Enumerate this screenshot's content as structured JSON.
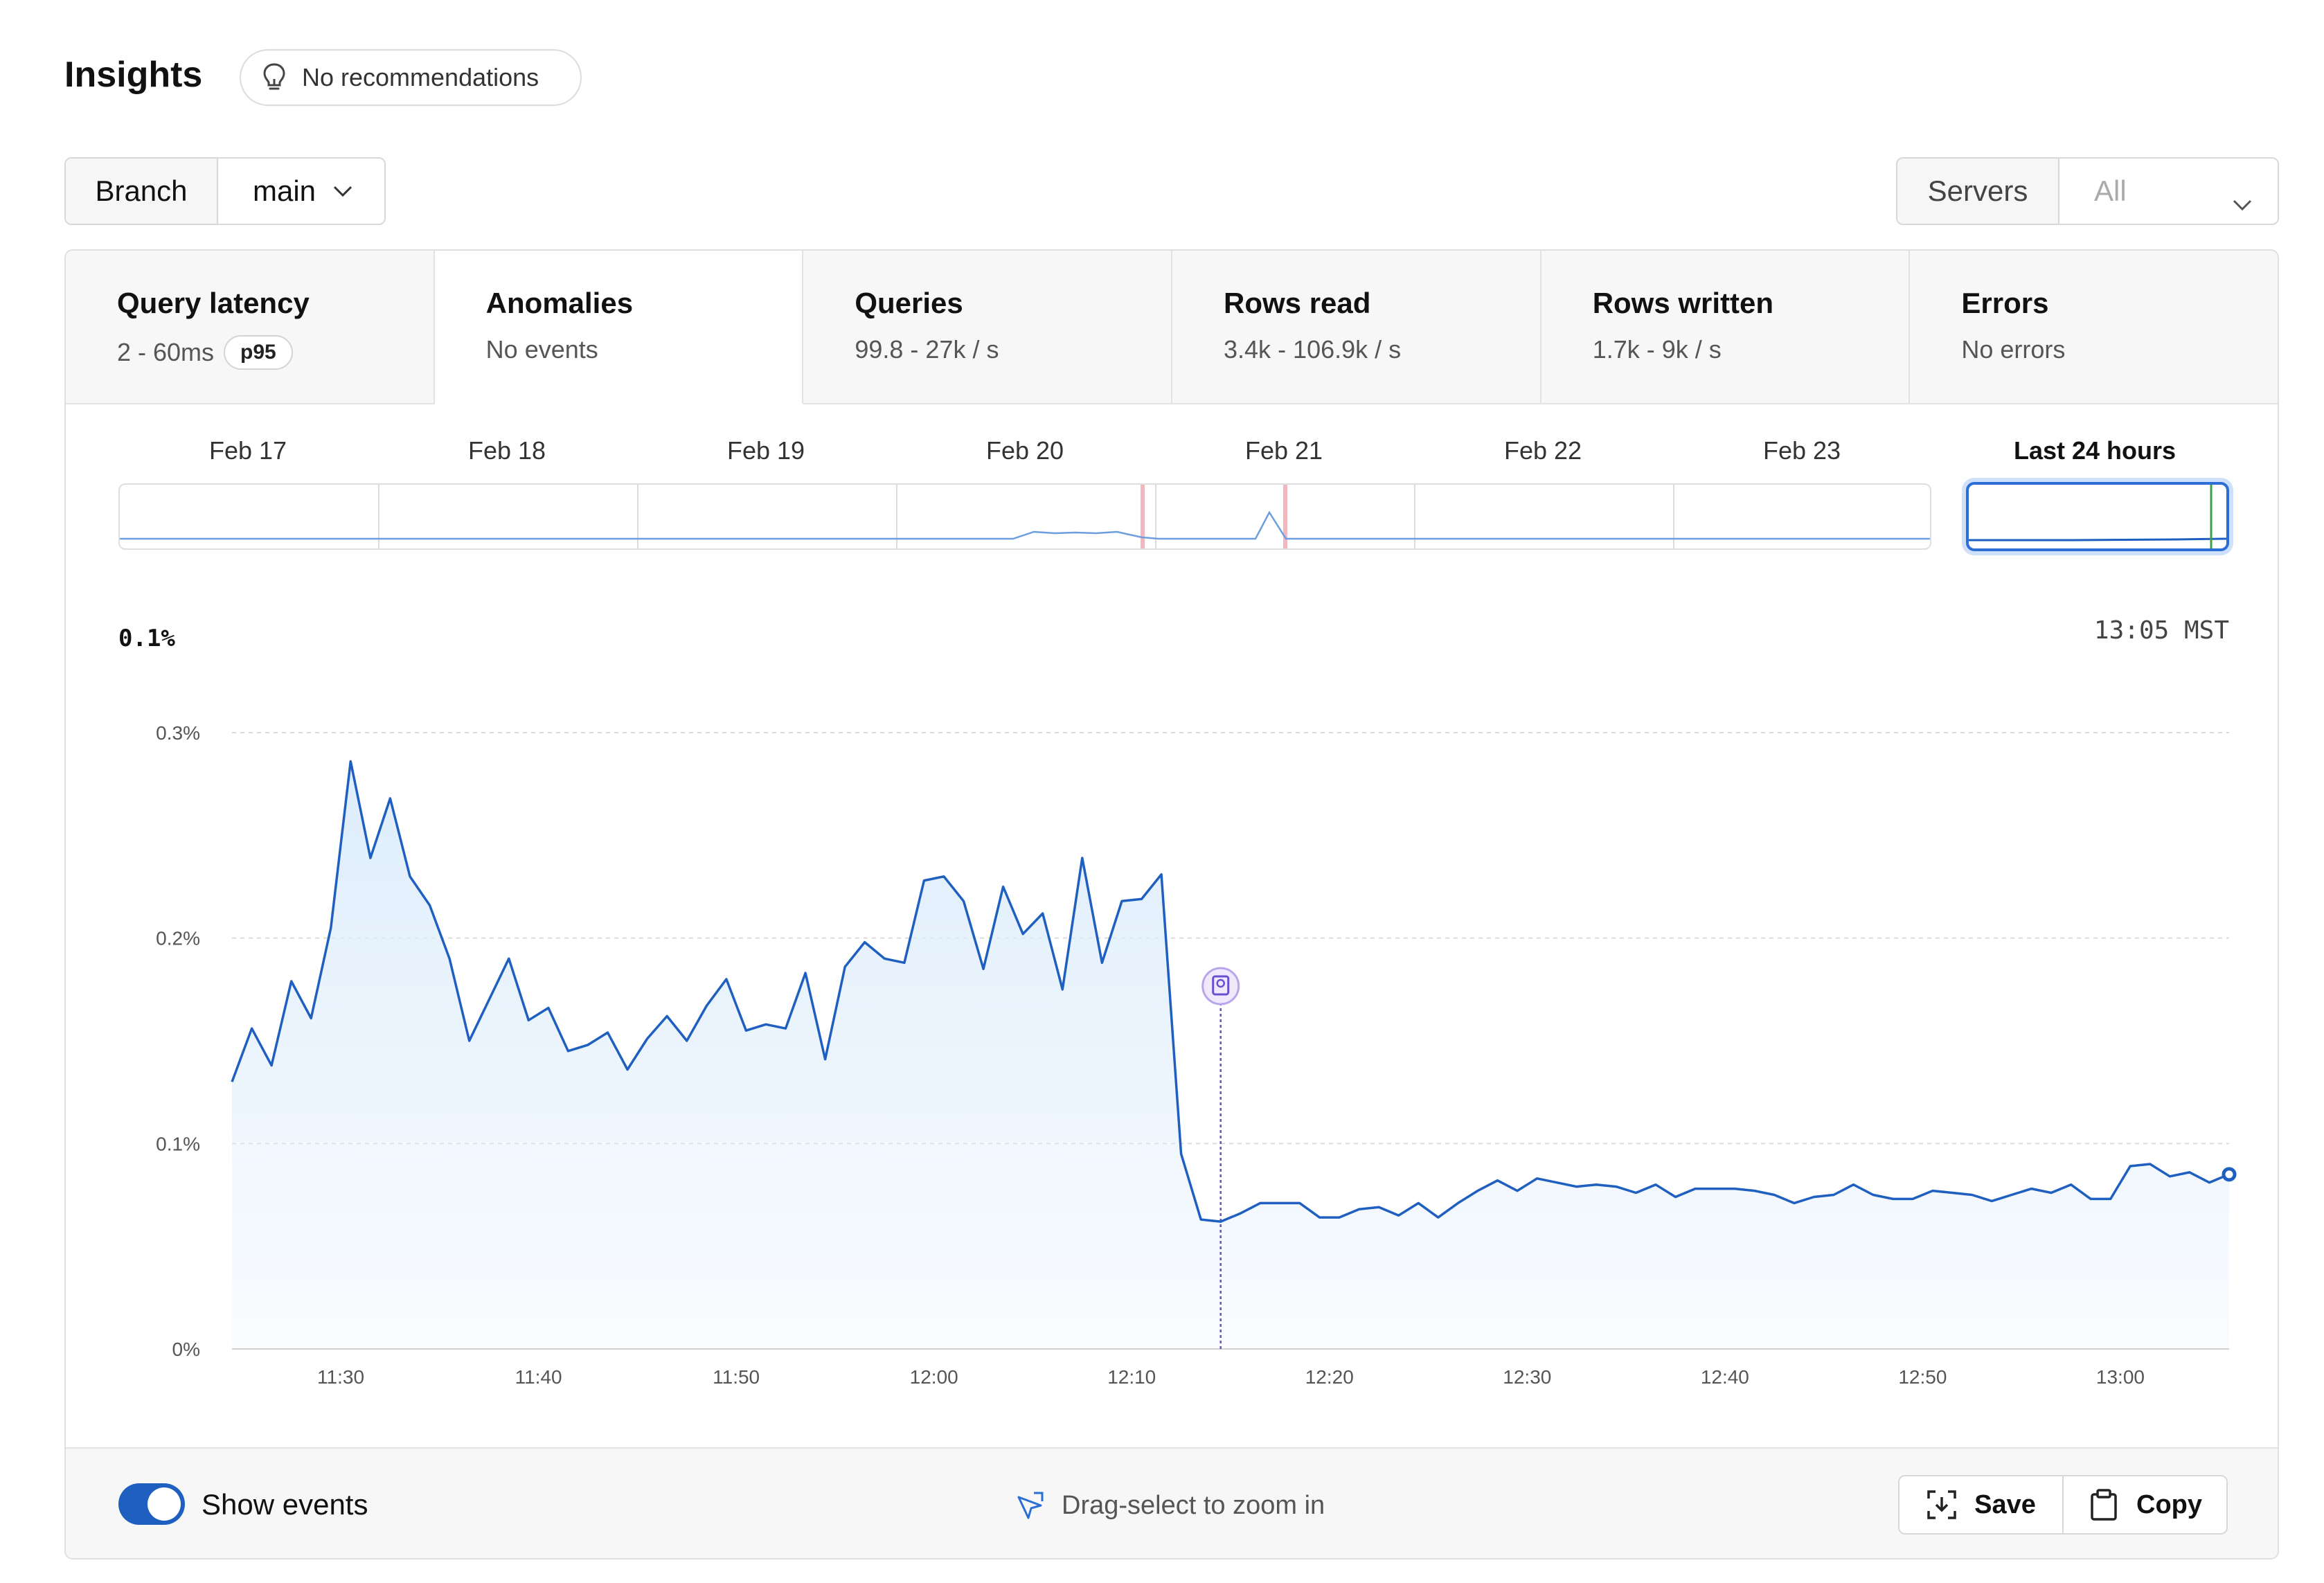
{
  "header": {
    "title": "Insights",
    "recommendations_label": "No recommendations"
  },
  "branch": {
    "label": "Branch",
    "value": "main"
  },
  "servers": {
    "label": "Servers",
    "value": "All"
  },
  "tabs": [
    {
      "title": "Query latency",
      "subtitle": "2 - 60ms",
      "badge": "p95",
      "active": false
    },
    {
      "title": "Anomalies",
      "subtitle": "No events",
      "active": true
    },
    {
      "title": "Queries",
      "subtitle": "99.8 - 27k / s",
      "active": false
    },
    {
      "title": "Rows read",
      "subtitle": "3.4k - 106.9k / s",
      "active": false
    },
    {
      "title": "Rows written",
      "subtitle": "1.7k - 9k / s",
      "active": false
    },
    {
      "title": "Errors",
      "subtitle": "No errors",
      "active": false
    }
  ],
  "minimap": {
    "days": [
      "Feb 17",
      "Feb 18",
      "Feb 19",
      "Feb 20",
      "Feb 21",
      "Feb 22",
      "Feb 23"
    ],
    "last24_label": "Last 24 hours"
  },
  "readout": {
    "value": "0.1%",
    "time": "13:05 MST"
  },
  "chart_data": {
    "type": "area",
    "x_tick_labels": [
      "11:30",
      "11:40",
      "11:50",
      "12:00",
      "12:10",
      "12:20",
      "12:30",
      "12:40",
      "12:50",
      "13:00"
    ],
    "x_ticks_minutes": [
      30,
      40,
      50,
      60,
      70,
      80,
      90,
      100,
      110,
      120
    ],
    "y_tick_labels": [
      "0%",
      "0.1%",
      "0.2%",
      "0.3%"
    ],
    "y_ticks": [
      0,
      0.1,
      0.2,
      0.3
    ],
    "xlim_minutes": [
      24.5,
      125.5
    ],
    "ylim": [
      0,
      0.3
    ],
    "grid": true,
    "event_marker_minutes": 74.5,
    "line_color": "#1f5fc0",
    "fill_color": "#dcecfb",
    "event_color": "#6a4fd0",
    "series": [
      {
        "x": [
          24.5,
          25.5,
          26.5,
          27.5,
          28.5,
          29.5,
          30.5,
          31.5,
          32.5,
          33.5,
          34.5,
          35.5,
          36.5,
          37.5,
          38.5,
          39.5,
          40.5,
          41.5,
          42.5,
          43.5,
          44.5,
          45.5,
          46.5,
          47.5,
          48.5,
          49.5,
          50.5,
          51.5,
          52.5,
          53.5,
          54.5,
          55.5,
          56.5,
          57.5,
          58.5,
          59.5,
          60.5,
          61.5,
          62.5,
          63.5,
          64.5,
          65.5,
          66.5,
          67.5,
          68.5,
          69.5,
          70.5,
          71.5,
          72.5,
          73.5,
          74.5,
          75.5,
          76.5,
          77.5,
          78.5,
          79.5,
          80.5,
          81.5,
          82.5,
          83.5,
          84.5,
          85.5,
          86.5,
          87.5,
          88.5,
          89.5,
          90.5,
          91.5,
          92.5,
          93.5,
          94.5,
          95.5,
          96.5,
          97.5,
          98.5,
          99.5,
          100.5,
          101.5,
          102.5,
          103.5,
          104.5,
          105.5,
          106.5,
          107.5,
          108.5,
          109.5,
          110.5,
          111.5,
          112.5,
          113.5,
          114.5,
          115.5,
          116.5,
          117.5,
          118.5,
          119.5,
          120.5,
          121.5,
          122.5,
          123.5,
          124.5,
          125.5
        ],
        "values": [
          0.13,
          0.156,
          0.138,
          0.179,
          0.161,
          0.205,
          0.286,
          0.239,
          0.268,
          0.23,
          0.216,
          0.19,
          0.15,
          0.17,
          0.19,
          0.16,
          0.166,
          0.145,
          0.148,
          0.154,
          0.136,
          0.151,
          0.162,
          0.15,
          0.167,
          0.18,
          0.155,
          0.158,
          0.156,
          0.183,
          0.141,
          0.186,
          0.198,
          0.19,
          0.188,
          0.228,
          0.23,
          0.218,
          0.185,
          0.225,
          0.202,
          0.212,
          0.175,
          0.239,
          0.188,
          0.218,
          0.219,
          0.231,
          0.095,
          0.063,
          0.062,
          0.066,
          0.071,
          0.071,
          0.071,
          0.064,
          0.064,
          0.068,
          0.069,
          0.065,
          0.071,
          0.064,
          0.071,
          0.077,
          0.082,
          0.077,
          0.083,
          0.081,
          0.079,
          0.08,
          0.079,
          0.076,
          0.08,
          0.074,
          0.078,
          0.078,
          0.078,
          0.077,
          0.075,
          0.071,
          0.074,
          0.075,
          0.08,
          0.075,
          0.073,
          0.073,
          0.077,
          0.076,
          0.075,
          0.072,
          0.075,
          0.078,
          0.076,
          0.08,
          0.073,
          0.073,
          0.089,
          0.09,
          0.084,
          0.086,
          0.081,
          0.085
        ]
      }
    ]
  },
  "footer": {
    "toggle_label": "Show events",
    "toggle_on": true,
    "hint": "Drag-select to zoom in",
    "save_label": "Save",
    "copy_label": "Copy"
  }
}
